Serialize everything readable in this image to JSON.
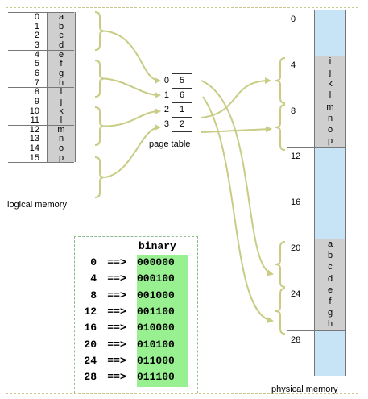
{
  "logical_memory": {
    "caption": "logical memory",
    "addresses": [
      "0",
      "1",
      "2",
      "3",
      "4",
      "5",
      "6",
      "7",
      "8",
      "9",
      "10",
      "11",
      "12",
      "13",
      "14",
      "15"
    ],
    "contents": [
      "a",
      "b",
      "c",
      "d",
      "e",
      "f",
      "g",
      "h",
      "i",
      "j",
      "k",
      "l",
      "m",
      "n",
      "o",
      "p"
    ]
  },
  "page_table": {
    "caption": "page table",
    "entries": [
      {
        "index": "0",
        "frame": "5"
      },
      {
        "index": "1",
        "frame": "6"
      },
      {
        "index": "2",
        "frame": "1"
      },
      {
        "index": "3",
        "frame": "2"
      }
    ]
  },
  "physical_memory": {
    "caption": "physical memory",
    "frame_labels": [
      "0",
      "4",
      "8",
      "12",
      "16",
      "20",
      "24",
      "28"
    ],
    "contents": [
      "",
      "",
      "",
      "",
      "i",
      "j",
      "k",
      "l",
      "m",
      "n",
      "o",
      "p",
      "",
      "",
      "",
      "",
      "",
      "",
      "",
      "",
      "a",
      "b",
      "c",
      "d",
      "e",
      "f",
      "g",
      "h",
      "",
      "",
      "",
      ""
    ]
  },
  "binary_table": {
    "header": "binary",
    "rows": [
      {
        "dec": "0",
        "arrow": "==>",
        "bin": "000000"
      },
      {
        "dec": "4",
        "arrow": "==>",
        "bin": "000100"
      },
      {
        "dec": "8",
        "arrow": "==>",
        "bin": "001000"
      },
      {
        "dec": "12",
        "arrow": "==>",
        "bin": "001100"
      },
      {
        "dec": "16",
        "arrow": "==>",
        "bin": "010000"
      },
      {
        "dec": "20",
        "arrow": "==>",
        "bin": "010100"
      },
      {
        "dec": "24",
        "arrow": "==>",
        "bin": "011000"
      },
      {
        "dec": "28",
        "arrow": "==>",
        "bin": "011100"
      }
    ]
  },
  "colors": {
    "arrow": "#c8cc84",
    "frame_empty": "#c6e4f6",
    "frame_used": "#cfcfcf",
    "logical_cell": "#cfcfcf",
    "binary_highlight": "#98f090"
  }
}
